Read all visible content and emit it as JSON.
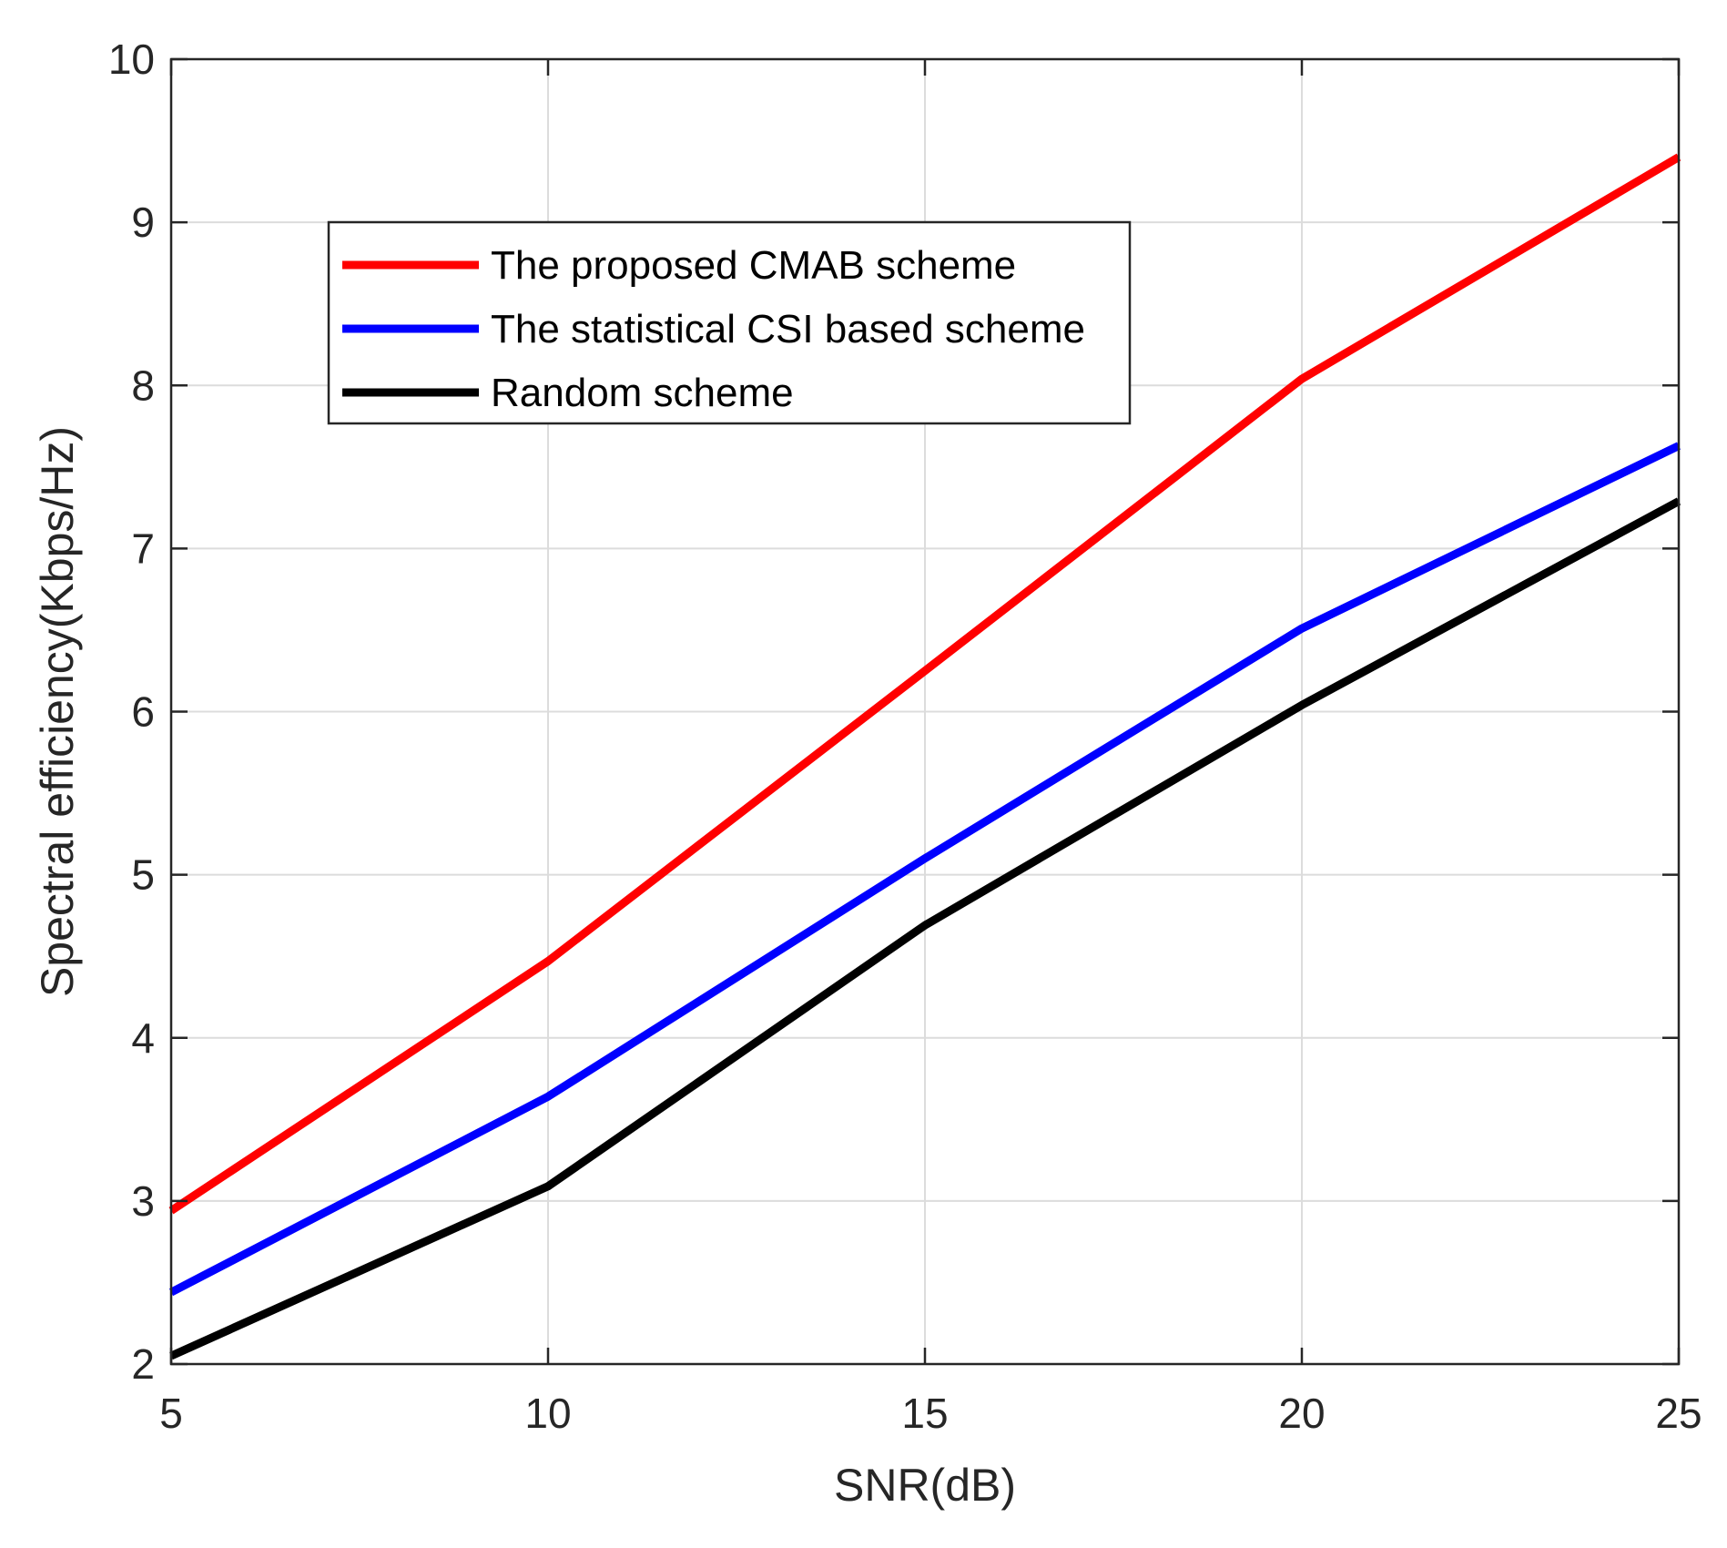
{
  "chart_data": {
    "type": "line",
    "title": "",
    "xlabel": "SNR(dB)",
    "ylabel": "Spectral efficiency(Kbps/Hz)",
    "xlim": [
      5,
      25
    ],
    "ylim": [
      2,
      10
    ],
    "grid": true,
    "legend_position": "top-left",
    "x": [
      5,
      10,
      15,
      20,
      25
    ],
    "xticks": [
      5,
      10,
      15,
      20,
      25
    ],
    "xtick_labels": [
      "5",
      "10",
      "15",
      "20",
      "25"
    ],
    "yticks": [
      2,
      3,
      4,
      5,
      6,
      7,
      8,
      9,
      10
    ],
    "ytick_labels": [
      "2",
      "3",
      "4",
      "5",
      "6",
      "7",
      "8",
      "9",
      "10"
    ],
    "series": [
      {
        "name": "The proposed CMAB scheme",
        "color": "#ff0000",
        "values": [
          2.94,
          4.47,
          6.25,
          8.04,
          9.4
        ]
      },
      {
        "name": "The statistical CSI based scheme",
        "color": "#0000ff",
        "values": [
          2.44,
          3.64,
          5.1,
          6.51,
          7.63
        ]
      },
      {
        "name": "Random scheme",
        "color": "#000000",
        "values": [
          2.05,
          3.09,
          4.69,
          6.04,
          7.29
        ]
      }
    ]
  }
}
